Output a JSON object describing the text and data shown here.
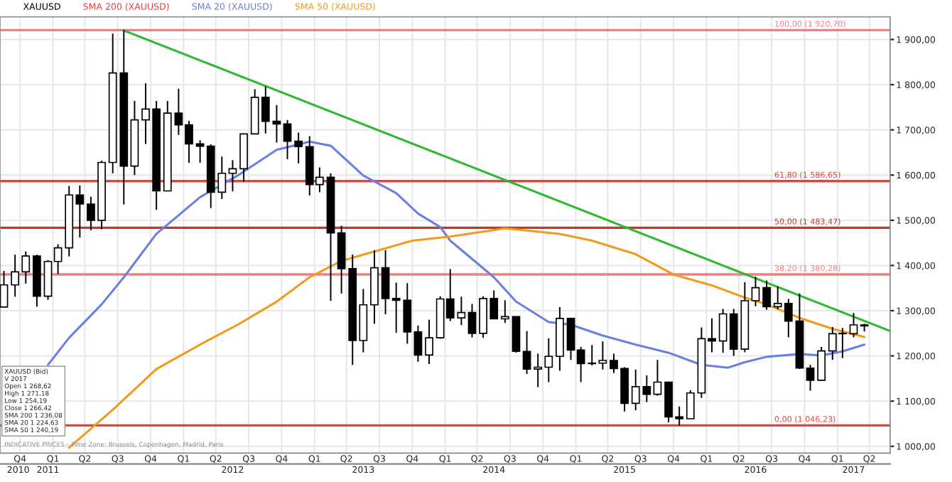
{
  "chart_data": {
    "type": "candlestick",
    "xlim": [
      "2010-09-20",
      "2017-07-12"
    ],
    "x2lim": [
      "2010-09-20",
      "2017-07-12"
    ],
    "xticks": [
      {
        "value": "2010-11-15",
        "label": "Q4"
      },
      {
        "value": "2011-02-15",
        "label": "Q1"
      },
      {
        "value": "2011-05-15",
        "label": "Q2"
      },
      {
        "value": "2011-08-15",
        "label": "Q3"
      },
      {
        "value": "2011-11-15",
        "label": "Q4"
      },
      {
        "value": "2012-02-15",
        "label": "Q1"
      },
      {
        "value": "2012-05-15",
        "label": "Q2"
      },
      {
        "value": "2012-08-15",
        "label": "Q3"
      },
      {
        "value": "2012-11-15",
        "label": "Q4"
      },
      {
        "value": "2013-02-15",
        "label": "Q1"
      },
      {
        "value": "2013-05-15",
        "label": "Q2"
      },
      {
        "value": "2013-08-15",
        "label": "Q3"
      },
      {
        "value": "2013-11-15",
        "label": "Q4"
      },
      {
        "value": "2014-02-15",
        "label": "Q1"
      },
      {
        "value": "2014-05-15",
        "label": "Q2"
      },
      {
        "value": "2014-08-15",
        "label": "Q3"
      },
      {
        "value": "2014-11-15",
        "label": "Q4"
      },
      {
        "value": "2015-02-15",
        "label": "Q1"
      },
      {
        "value": "2015-05-15",
        "label": "Q2"
      },
      {
        "value": "2015-08-15",
        "label": "Q3"
      },
      {
        "value": "2015-11-15",
        "label": "Q4"
      },
      {
        "value": "2016-02-15",
        "label": "Q1"
      },
      {
        "value": "2016-05-15",
        "label": "Q2"
      },
      {
        "value": "2016-08-15",
        "label": "Q3"
      },
      {
        "value": "2016-11-15",
        "label": "Q4"
      },
      {
        "value": "2017-02-15",
        "label": "Q1"
      },
      {
        "value": "2017-05-15",
        "label": "Q2"
      }
    ],
    "x2ticks": [
      {
        "value": "2010-11-10",
        "label": "2010"
      },
      {
        "value": "2011-02-01",
        "label": "2011"
      },
      {
        "value": "2012-07-01",
        "label": "2012"
      },
      {
        "value": "2013-07-01",
        "label": "2013"
      },
      {
        "value": "2014-07-01",
        "label": "2014"
      },
      {
        "value": "2015-07-01",
        "label": "2015"
      },
      {
        "value": "2016-07-01",
        "label": "2016"
      },
      {
        "value": "2017-04-01",
        "label": "2017"
      }
    ],
    "ylim": [
      985,
      1950
    ],
    "yticks": [
      {
        "value": 1000,
        "label": "1 000,00"
      },
      {
        "value": 1100,
        "label": "1 100,00"
      },
      {
        "value": 1200,
        "label": "1 200,00"
      },
      {
        "value": 1300,
        "label": "1 300,00"
      },
      {
        "value": 1400,
        "label": "1 400,00"
      },
      {
        "value": 1500,
        "label": "1 500,00"
      },
      {
        "value": 1600,
        "label": "1 600,00"
      },
      {
        "value": 1700,
        "label": "1 700,00"
      },
      {
        "value": 1800,
        "label": "1 800,00"
      },
      {
        "value": 1900,
        "label": "1 900,00"
      }
    ],
    "grid": true,
    "legend": "top left",
    "series": [
      {
        "name": "XAUUSD",
        "color": "#000000",
        "x": [
          "2010-10",
          "2010-11",
          "2010-12",
          "2011-01",
          "2011-02",
          "2011-03",
          "2011-04",
          "2011-05",
          "2011-06",
          "2011-07",
          "2011-08",
          "2011-09",
          "2011-10",
          "2011-11",
          "2011-12",
          "2012-01",
          "2012-02",
          "2012-03",
          "2012-04",
          "2012-05",
          "2012-06",
          "2012-07",
          "2012-08",
          "2012-09",
          "2012-10",
          "2012-11",
          "2012-12",
          "2013-01",
          "2013-02",
          "2013-03",
          "2013-04",
          "2013-05",
          "2013-06",
          "2013-07",
          "2013-08",
          "2013-09",
          "2013-10",
          "2013-11",
          "2013-12",
          "2014-01",
          "2014-02",
          "2014-03",
          "2014-04",
          "2014-05",
          "2014-06",
          "2014-07",
          "2014-08",
          "2014-09",
          "2014-10",
          "2014-11",
          "2014-12",
          "2015-01",
          "2015-02",
          "2015-03",
          "2015-04",
          "2015-05",
          "2015-06",
          "2015-07",
          "2015-08",
          "2015-09",
          "2015-10",
          "2015-11",
          "2015-12",
          "2016-01",
          "2016-02",
          "2016-03",
          "2016-04",
          "2016-05",
          "2016-06",
          "2016-07",
          "2016-08",
          "2016-09",
          "2016-10",
          "2016-11",
          "2016-12",
          "2017-01",
          "2017-02",
          "2017-03",
          "2017-04",
          "2017-05"
        ],
        "ohlc": [
          [
            1308,
            1388,
            1308,
            1357
          ],
          [
            1357,
            1424,
            1331,
            1386
          ],
          [
            1386,
            1431,
            1360,
            1421
          ],
          [
            1421,
            1424,
            1309,
            1332
          ],
          [
            1332,
            1412,
            1324,
            1409
          ],
          [
            1409,
            1447,
            1381,
            1439
          ],
          [
            1439,
            1576,
            1420,
            1556
          ],
          [
            1556,
            1577,
            1462,
            1536
          ],
          [
            1536,
            1552,
            1478,
            1500
          ],
          [
            1500,
            1632,
            1480,
            1628
          ],
          [
            1628,
            1913,
            1604,
            1826
          ],
          [
            1826,
            1920.7,
            1535,
            1620
          ],
          [
            1620,
            1764,
            1600,
            1722
          ],
          [
            1722,
            1803,
            1669,
            1746
          ],
          [
            1746,
            1764,
            1523,
            1565
          ],
          [
            1565,
            1764,
            1564,
            1737
          ],
          [
            1737,
            1791,
            1689,
            1711
          ],
          [
            1711,
            1720,
            1627,
            1669
          ],
          [
            1669,
            1677,
            1627,
            1664
          ],
          [
            1664,
            1668,
            1527,
            1562
          ],
          [
            1562,
            1641,
            1547,
            1604
          ],
          [
            1604,
            1633,
            1564,
            1614
          ],
          [
            1614,
            1691,
            1585,
            1691
          ],
          [
            1691,
            1790,
            1690,
            1772
          ],
          [
            1772,
            1796,
            1692,
            1719
          ],
          [
            1719,
            1755,
            1672,
            1713
          ],
          [
            1713,
            1722,
            1635,
            1675
          ],
          [
            1675,
            1694,
            1626,
            1663
          ],
          [
            1663,
            1686,
            1555,
            1579
          ],
          [
            1579,
            1617,
            1562,
            1595
          ],
          [
            1595,
            1604,
            1322,
            1472
          ],
          [
            1472,
            1488,
            1338,
            1393
          ],
          [
            1393,
            1424,
            1180,
            1234
          ],
          [
            1234,
            1348,
            1208,
            1313
          ],
          [
            1313,
            1434,
            1271,
            1395
          ],
          [
            1395,
            1434,
            1292,
            1327
          ],
          [
            1327,
            1362,
            1251,
            1323
          ],
          [
            1323,
            1361,
            1227,
            1253
          ],
          [
            1253,
            1267,
            1187,
            1202
          ],
          [
            1202,
            1280,
            1182,
            1240
          ],
          [
            1240,
            1332,
            1238,
            1326
          ],
          [
            1326,
            1392,
            1277,
            1284
          ],
          [
            1284,
            1331,
            1268,
            1296
          ],
          [
            1296,
            1315,
            1241,
            1250
          ],
          [
            1250,
            1332,
            1240,
            1327
          ],
          [
            1327,
            1345,
            1282,
            1282
          ],
          [
            1282,
            1323,
            1273,
            1287
          ],
          [
            1287,
            1287,
            1207,
            1210
          ],
          [
            1210,
            1255,
            1160,
            1171
          ],
          [
            1171,
            1205,
            1131,
            1175
          ],
          [
            1175,
            1239,
            1142,
            1199
          ],
          [
            1199,
            1308,
            1167,
            1283
          ],
          [
            1283,
            1284,
            1191,
            1213
          ],
          [
            1213,
            1220,
            1142,
            1183
          ],
          [
            1183,
            1224,
            1179,
            1184
          ],
          [
            1184,
            1232,
            1170,
            1190
          ],
          [
            1190,
            1205,
            1162,
            1172
          ],
          [
            1172,
            1175,
            1077,
            1095
          ],
          [
            1095,
            1170,
            1080,
            1132
          ],
          [
            1132,
            1157,
            1098,
            1115
          ],
          [
            1115,
            1191,
            1112,
            1142
          ],
          [
            1142,
            1142,
            1053,
            1065
          ],
          [
            1065,
            1088,
            1046.23,
            1061
          ],
          [
            1061,
            1124,
            1061,
            1118
          ],
          [
            1118,
            1263,
            1107,
            1238
          ],
          [
            1238,
            1283,
            1208,
            1233
          ],
          [
            1233,
            1304,
            1207,
            1293
          ],
          [
            1293,
            1304,
            1200,
            1215
          ],
          [
            1215,
            1363,
            1208,
            1322
          ],
          [
            1322,
            1375,
            1310,
            1351
          ],
          [
            1351,
            1367,
            1302,
            1309
          ],
          [
            1309,
            1353,
            1303,
            1316
          ],
          [
            1316,
            1326,
            1241,
            1277
          ],
          [
            1277,
            1338,
            1171,
            1173
          ],
          [
            1173,
            1180,
            1123,
            1146
          ],
          [
            1146,
            1220,
            1145,
            1211
          ],
          [
            1211,
            1264,
            1191,
            1249
          ],
          [
            1249,
            1262,
            1195,
            1249
          ],
          [
            1249,
            1295,
            1241,
            1268.62
          ],
          [
            1268.62,
            1271.18,
            1254.19,
            1266.42
          ]
        ]
      },
      {
        "type": "line",
        "name": "SMA 20 (XAUUSD)",
        "color": "#6a80e0",
        "x": [
          "2011-02",
          "2011-04",
          "2011-07",
          "2011-09",
          "2011-12",
          "2012-04",
          "2012-07-15",
          "2012-11",
          "2013-02",
          "2013-04",
          "2013-07",
          "2013-10",
          "2013-12",
          "2014-02",
          "2014-03",
          "2014-07",
          "2014-09",
          "2014-12",
          "2015-02",
          "2015-05",
          "2015-08",
          "2015-11",
          "2016-02",
          "2016-04-15",
          "2016-06",
          "2016-08",
          "2016-11",
          "2017-01",
          "2017-03",
          "2017-05"
        ],
        "values": [
          1180,
          1240,
          1314,
          1374,
          1470,
          1551,
          1599,
          1656,
          1674,
          1665,
          1599,
          1560,
          1515,
          1485,
          1455,
          1374,
          1320,
          1275,
          1269,
          1245,
          1225,
          1207,
          1180,
          1174,
          1186,
          1198,
          1204,
          1201,
          1210,
          1225
        ]
      },
      {
        "type": "line",
        "name": "SMA 50 (XAUUSD)",
        "color": "#f39a1e",
        "x": [
          "2011-04",
          "2011-08",
          "2011-12",
          "2012-04",
          "2012-07-15",
          "2012-11",
          "2013-02",
          "2013-05",
          "2013-08",
          "2013-11-15",
          "2014-03",
          "2014-08",
          "2015-01",
          "2015-04",
          "2015-08",
          "2015-11-15",
          "2016-03",
          "2016-06",
          "2016-08",
          "2016-11",
          "2017-02",
          "2017-05"
        ],
        "values": [
          997,
          1081,
          1171,
          1225,
          1269,
          1320,
          1374,
          1410,
          1431,
          1455,
          1464,
          1482,
          1470,
          1455,
          1425,
          1380,
          1356,
          1329,
          1314,
          1284,
          1260,
          1242
        ]
      },
      {
        "type": "line",
        "color": "#2eb82e",
        "x": [
          "2011-09",
          "2017-07-12"
        ],
        "values": [
          1920,
          1255
        ]
      }
    ],
    "ref_lines": [
      {
        "axis": "y",
        "value": 1920.7,
        "label": "100,00 (1 920,70)",
        "color": "#f08080"
      },
      {
        "axis": "y",
        "value": 1586.65,
        "label": "61,80 (1 586,65)",
        "color": "#e8413c"
      },
      {
        "axis": "y",
        "value": 1483.47,
        "label": "50,00 (1 483,47)",
        "color": "#c0392b"
      },
      {
        "axis": "y",
        "value": 1380.28,
        "label": "38,20 (1 380,28)",
        "color": "#f08080"
      },
      {
        "axis": "y",
        "value": 1046.23,
        "label": "0,00 (1 046,23)",
        "color": "#e8413c"
      }
    ],
    "annotations": [
      "XAUUSD (Bid)\nV 2017\nOpen 1 268,62\nHigh 1 271,18\nLow 1 254,19\nClose 1 266,42\nSMA 200 1 236,08\nSMA 20 1 224,63\nSMA 50 1 240,19",
      "INDICATIVE PRICES - Time Zone: Brussels, Copenhagen, Madrid, Paris",
      "SMA 200 (XAUUSD)"
    ]
  }
}
